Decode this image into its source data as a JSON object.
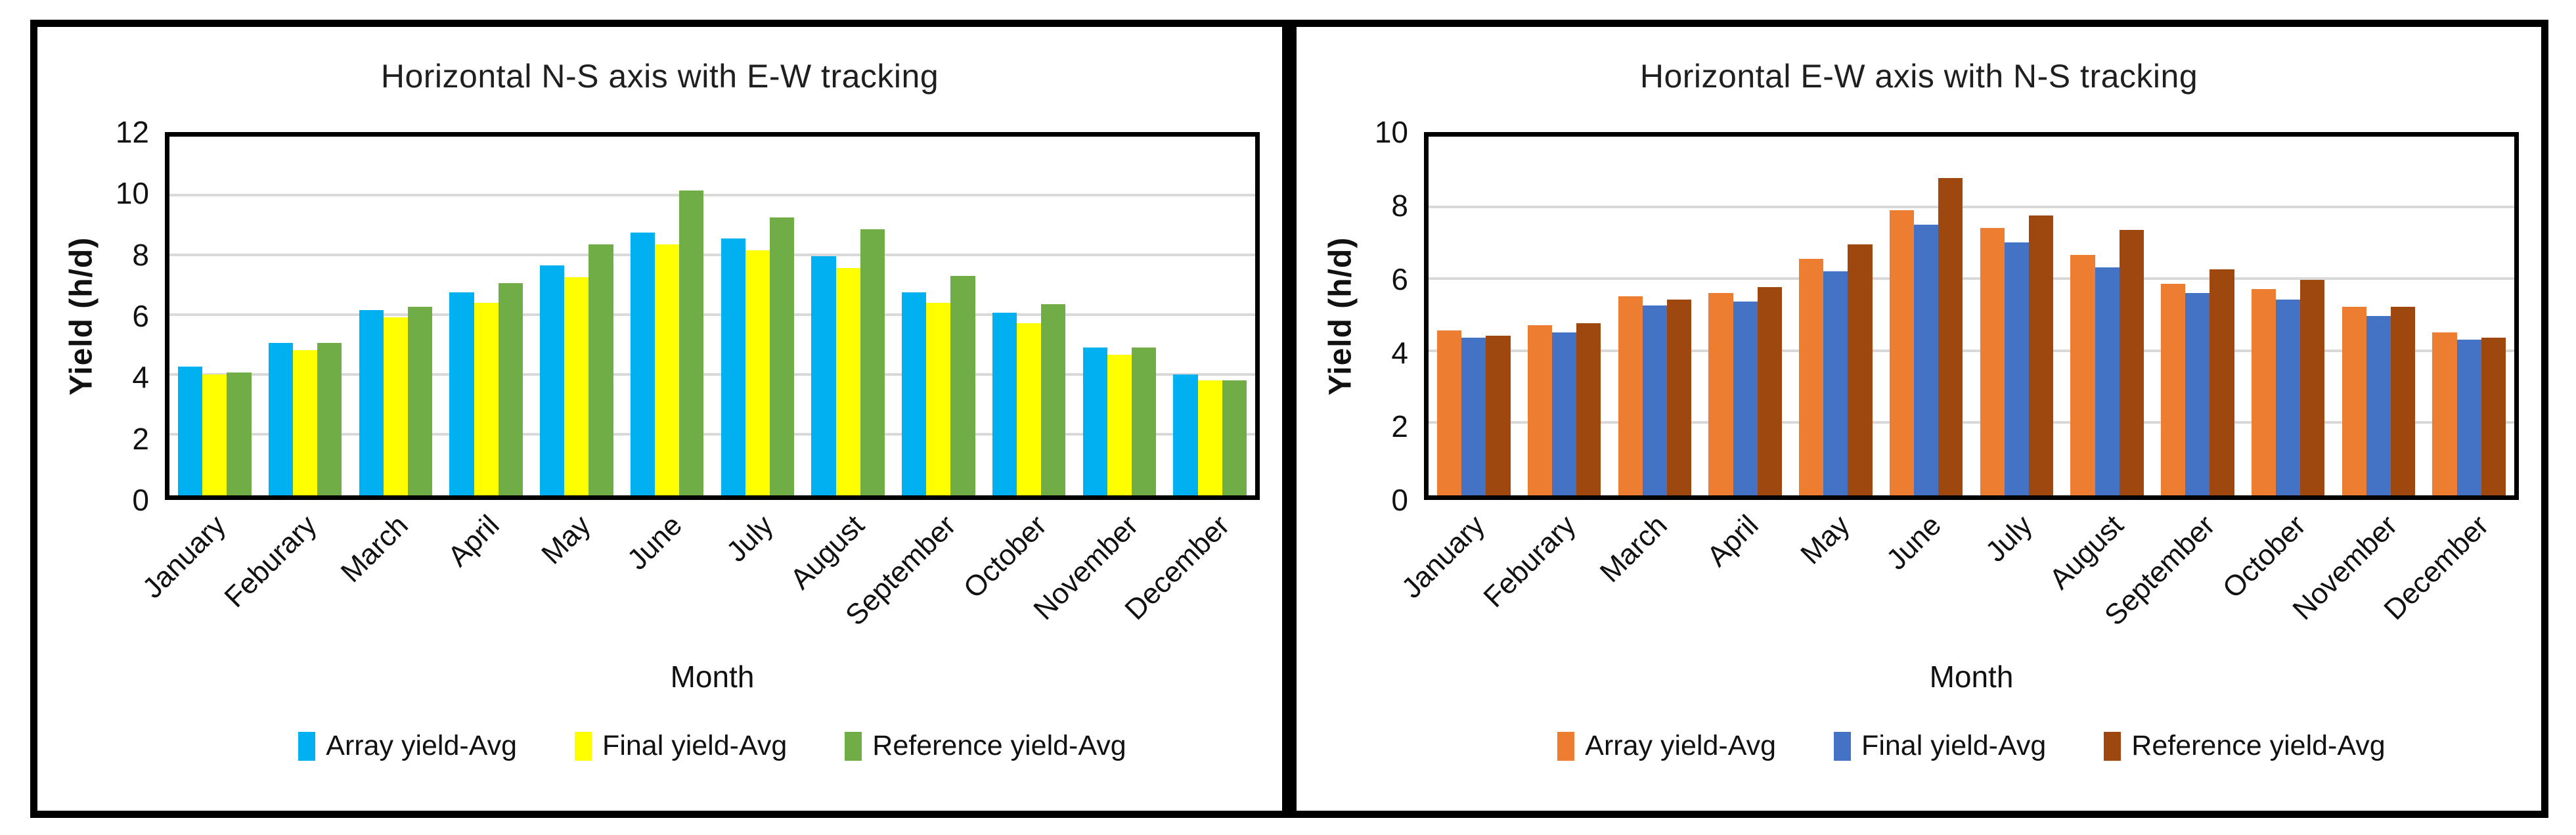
{
  "chart_data": [
    {
      "type": "bar",
      "title": "Horizontal N-S axis with E-W tracking",
      "xlabel": "Month",
      "ylabel": "Yield (h/d)",
      "ymax": 12,
      "yticks": [
        0,
        2,
        4,
        6,
        8,
        10,
        12
      ],
      "grid": "horizontal",
      "legend_position": "bottom",
      "gridline_color": "#D9D9D9",
      "categories": [
        "January",
        "Feburary",
        "March",
        "April",
        "May",
        "June",
        "July",
        "August",
        "September",
        "October",
        "November",
        "December"
      ],
      "series": [
        {
          "name": "Array yield-Avg",
          "color": "#00B0F0",
          "values": [
            4.3,
            5.1,
            6.2,
            6.8,
            7.7,
            8.8,
            8.6,
            8.0,
            6.8,
            6.1,
            4.95,
            4.05
          ]
        },
        {
          "name": "Final yield-Avg",
          "color": "#FFFF00",
          "values": [
            4.05,
            4.85,
            5.95,
            6.45,
            7.3,
            8.4,
            8.2,
            7.6,
            6.45,
            5.75,
            4.7,
            3.85
          ]
        },
        {
          "name": "Reference yield-Avg",
          "color": "#70AD47",
          "values": [
            4.1,
            5.1,
            6.3,
            7.1,
            8.4,
            10.2,
            9.3,
            8.9,
            7.35,
            6.4,
            4.95,
            3.85
          ]
        }
      ]
    },
    {
      "type": "bar",
      "title": "Horizontal E-W axis with N-S tracking",
      "xlabel": "Month",
      "ylabel": "Yield (h/d)",
      "ymax": 10,
      "yticks": [
        0,
        2,
        4,
        6,
        8,
        10
      ],
      "grid": "horizontal",
      "legend_position": "bottom",
      "gridline_color": "#D9D9D9",
      "categories": [
        "January",
        "Feburary",
        "March",
        "April",
        "May",
        "June",
        "July",
        "August",
        "September",
        "October",
        "November",
        "December"
      ],
      "series": [
        {
          "name": "Array yield-Avg",
          "color": "#ED7D31",
          "values": [
            4.6,
            4.75,
            5.55,
            5.65,
            6.6,
            7.95,
            7.45,
            6.7,
            5.9,
            5.75,
            5.25,
            4.55
          ]
        },
        {
          "name": "Final yield-Avg",
          "color": "#4472C4",
          "values": [
            4.4,
            4.55,
            5.3,
            5.4,
            6.25,
            7.55,
            7.05,
            6.35,
            5.65,
            5.45,
            5.0,
            4.35
          ]
        },
        {
          "name": "Reference yield-Avg",
          "color": "#9E480F",
          "values": [
            4.45,
            4.8,
            5.45,
            5.8,
            7.0,
            8.85,
            7.8,
            7.4,
            6.3,
            6.0,
            5.25,
            4.4
          ]
        }
      ]
    }
  ]
}
